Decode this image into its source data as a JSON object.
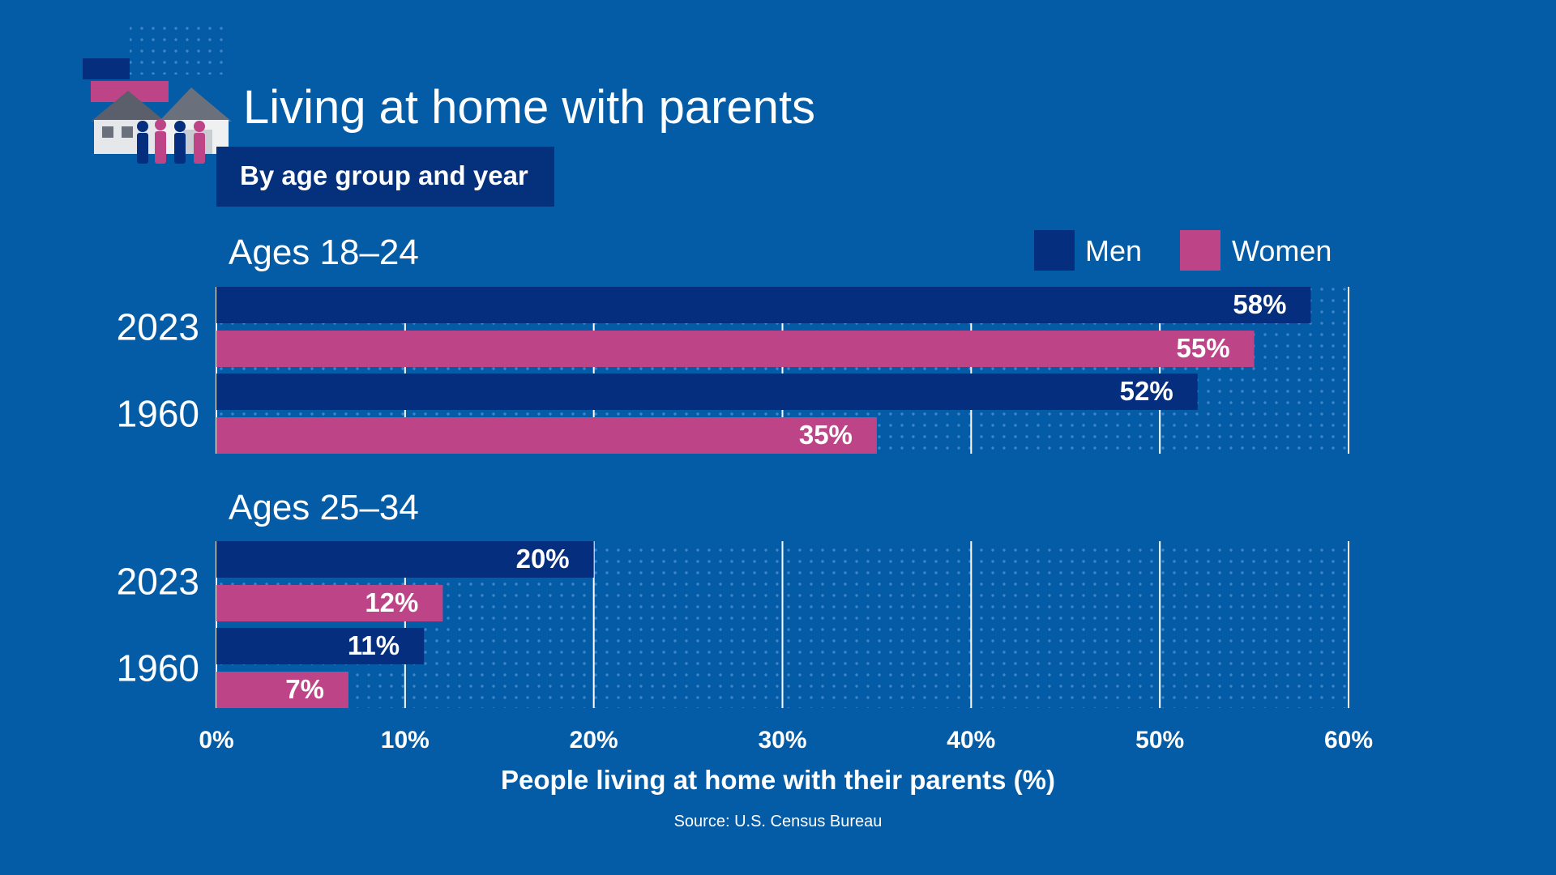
{
  "title": "Living at home with parents",
  "subtitle": "By age group and year",
  "source": "Source: U.S. Census Bureau",
  "colors": {
    "background": "#045ba6",
    "men": "#052f7e",
    "women": "#be4488",
    "subtitle_box": "#05307c",
    "grid": "#ffffff"
  },
  "chart_data": {
    "type": "bar",
    "orientation": "horizontal",
    "xlabel": "People living at home with their parents (%)",
    "xlim": [
      0,
      60
    ],
    "x_ticks": [
      "0%",
      "10%",
      "20%",
      "30%",
      "40%",
      "50%",
      "60%"
    ],
    "x_tick_values": [
      0,
      10,
      20,
      30,
      40,
      50,
      60
    ],
    "legend": [
      {
        "name": "Men",
        "color": "#052f7e"
      },
      {
        "name": "Women",
        "color": "#be4488"
      }
    ],
    "legend_position": "top-right",
    "grid": true,
    "panels": [
      {
        "title": "Ages 18–24",
        "groups": [
          {
            "year": "2023",
            "bars": [
              {
                "series": "Men",
                "value": 58,
                "label": "58%"
              },
              {
                "series": "Women",
                "value": 55,
                "label": "55%"
              }
            ]
          },
          {
            "year": "1960",
            "bars": [
              {
                "series": "Men",
                "value": 52,
                "label": "52%"
              },
              {
                "series": "Women",
                "value": 35,
                "label": "35%"
              }
            ]
          }
        ]
      },
      {
        "title": "Ages 25–34",
        "groups": [
          {
            "year": "2023",
            "bars": [
              {
                "series": "Men",
                "value": 20,
                "label": "20%"
              },
              {
                "series": "Women",
                "value": 12,
                "label": "12%"
              }
            ]
          },
          {
            "year": "1960",
            "bars": [
              {
                "series": "Men",
                "value": 11,
                "label": "11%"
              },
              {
                "series": "Women",
                "value": 7,
                "label": "7%"
              }
            ]
          }
        ]
      }
    ]
  }
}
